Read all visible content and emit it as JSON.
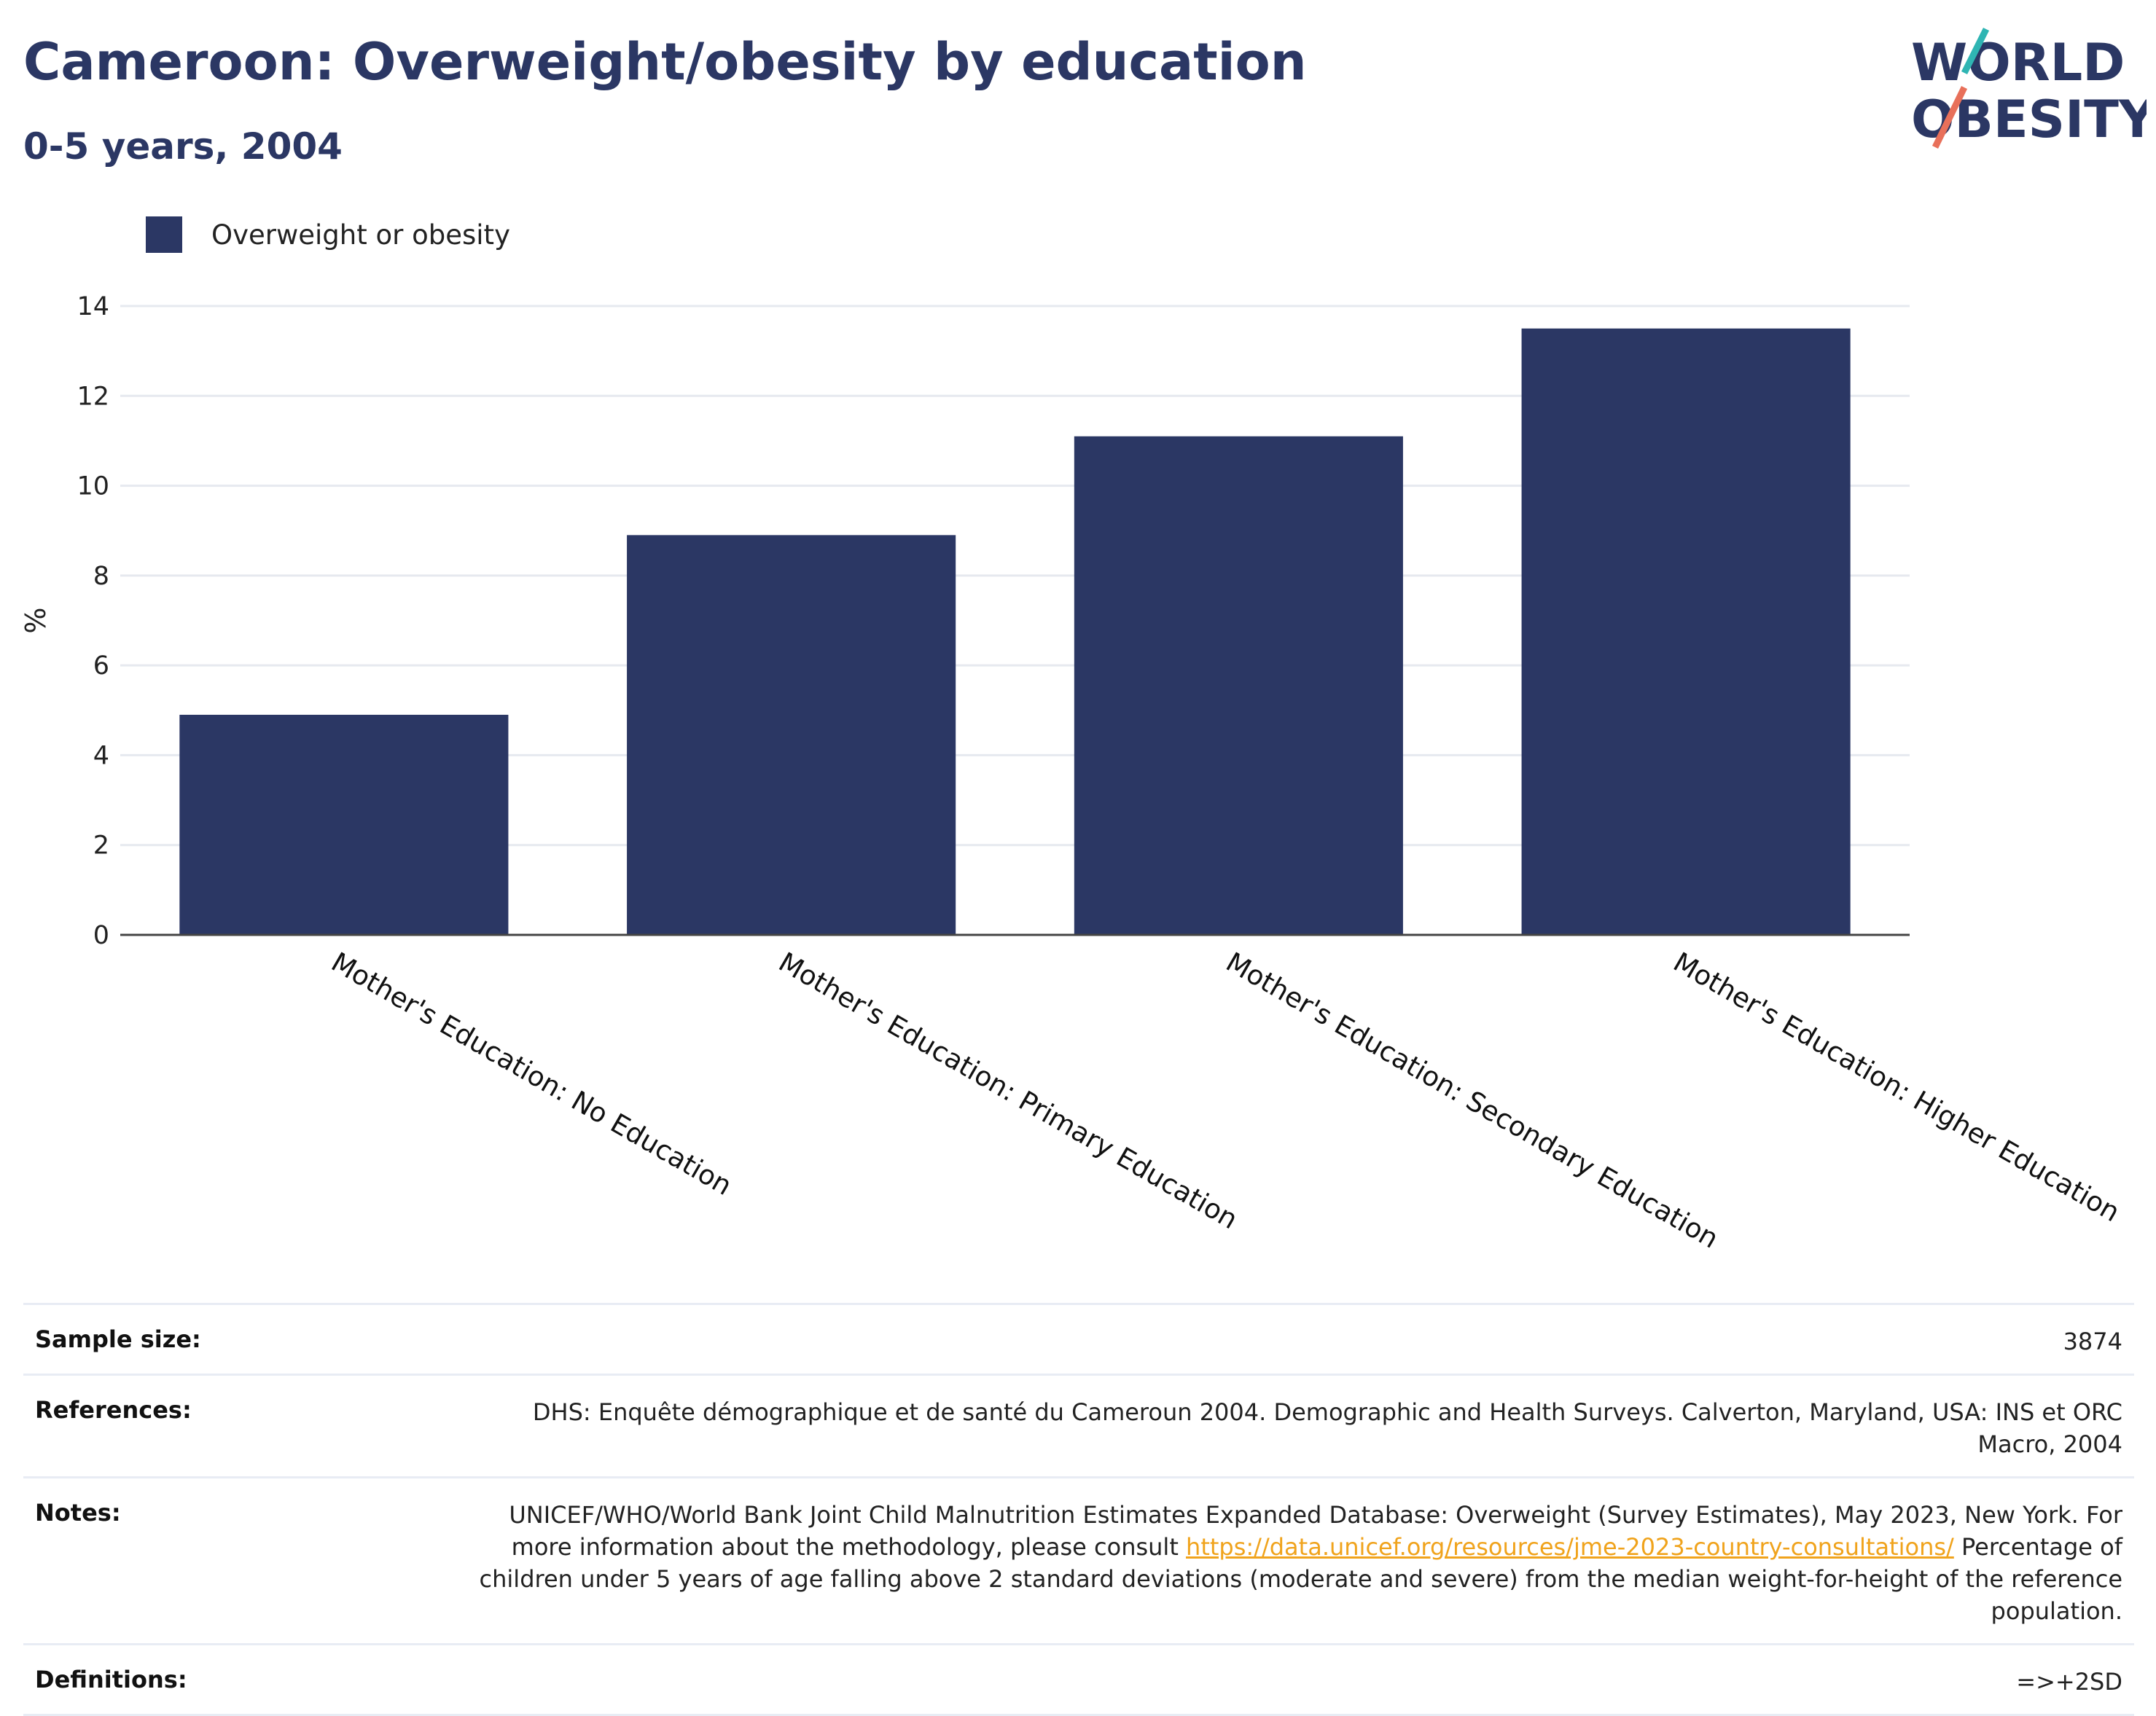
{
  "header": {
    "title": "Cameroon: Overweight/obesity by education",
    "subtitle": "0-5 years, 2004"
  },
  "logo": {
    "line1": "WORLD",
    "line2": "OBESITY",
    "colors": {
      "navy": "#2b3764",
      "teal": "#2fb5b3",
      "coral": "#e8705a"
    }
  },
  "legend": {
    "items": [
      {
        "label": "Overweight or obesity",
        "color": "#2b3764"
      }
    ]
  },
  "chart_data": {
    "type": "bar",
    "title": "Cameroon: Overweight/obesity by education",
    "subtitle": "0-5 years, 2004",
    "xlabel": "",
    "ylabel": "%",
    "categories": [
      "Mother's Education: No Education",
      "Mother's Education: Primary Education",
      "Mother's Education: Secondary Education",
      "Mother's Education: Higher Education"
    ],
    "series": [
      {
        "name": "Overweight or obesity",
        "values": [
          4.9,
          8.9,
          11.1,
          13.5
        ],
        "color": "#2b3764"
      }
    ],
    "ylim": [
      0,
      14
    ],
    "yticks": [
      0,
      2,
      4,
      6,
      8,
      10,
      12,
      14
    ],
    "grid": true,
    "legend_position": "top-left"
  },
  "info": {
    "sample_size": {
      "label": "Sample size:",
      "value": "3874"
    },
    "references": {
      "label": "References:",
      "value": "DHS: Enquête démographique et de santé du Cameroun 2004. Demographic and Health Surveys. Calverton, Maryland, USA: INS et ORC Macro, 2004"
    },
    "notes": {
      "label": "Notes:",
      "text_before": "UNICEF/WHO/World Bank Joint Child Malnutrition Estimates Expanded Database: Overweight (Survey Estimates), May 2023, New York. For more information about the methodology, please consult ",
      "link": "https://data.unicef.org/resources/jme-2023-country-consultations/",
      "text_after": " Percentage of children under 5 years of age falling above 2 standard deviations (moderate and severe) from the median weight-for-height of the reference population."
    },
    "definitions": {
      "label": "Definitions:",
      "value": "=>+2SD"
    }
  }
}
